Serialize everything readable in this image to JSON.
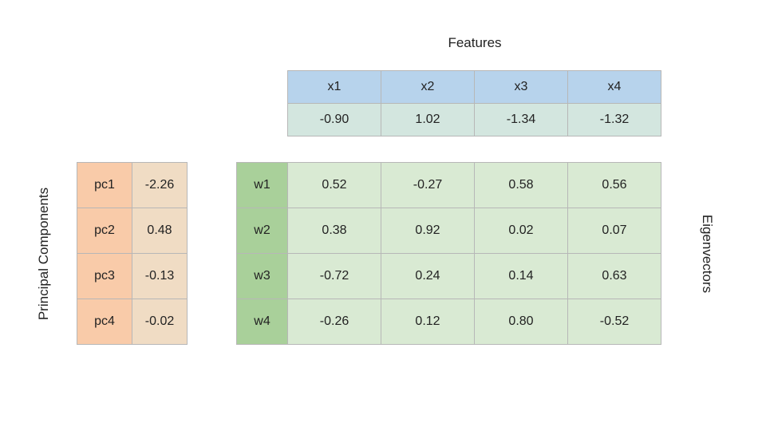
{
  "features": {
    "title": "Features",
    "headers": [
      "x1",
      "x2",
      "x3",
      "x4"
    ],
    "values": [
      "-0.90",
      "1.02",
      "-1.34",
      "-1.32"
    ]
  },
  "principal_components": {
    "label": "Principal Components",
    "rows": [
      {
        "name": "pc1",
        "value": "-2.26"
      },
      {
        "name": "pc2",
        "value": "0.48"
      },
      {
        "name": "pc3",
        "value": "-0.13"
      },
      {
        "name": "pc4",
        "value": "-0.02"
      }
    ]
  },
  "eigenvectors": {
    "label": "Eigenvectors",
    "rows": [
      {
        "name": "w1",
        "values": [
          "0.52",
          "-0.27",
          "0.58",
          "0.56"
        ]
      },
      {
        "name": "w2",
        "values": [
          "0.38",
          "0.92",
          "0.02",
          "0.07"
        ]
      },
      {
        "name": "w3",
        "values": [
          "-0.72",
          "0.24",
          "0.14",
          "0.63"
        ]
      },
      {
        "name": "w4",
        "values": [
          "-0.26",
          "0.12",
          "0.80",
          "-0.52"
        ]
      }
    ]
  },
  "colors": {
    "features_header": "#b7d3ec",
    "features_values": "#d3e6df",
    "pc_name": "#f9cba9",
    "pc_value": "#f0dcc4",
    "eigen_name": "#a9d09a",
    "eigen_value": "#d9ead3"
  }
}
